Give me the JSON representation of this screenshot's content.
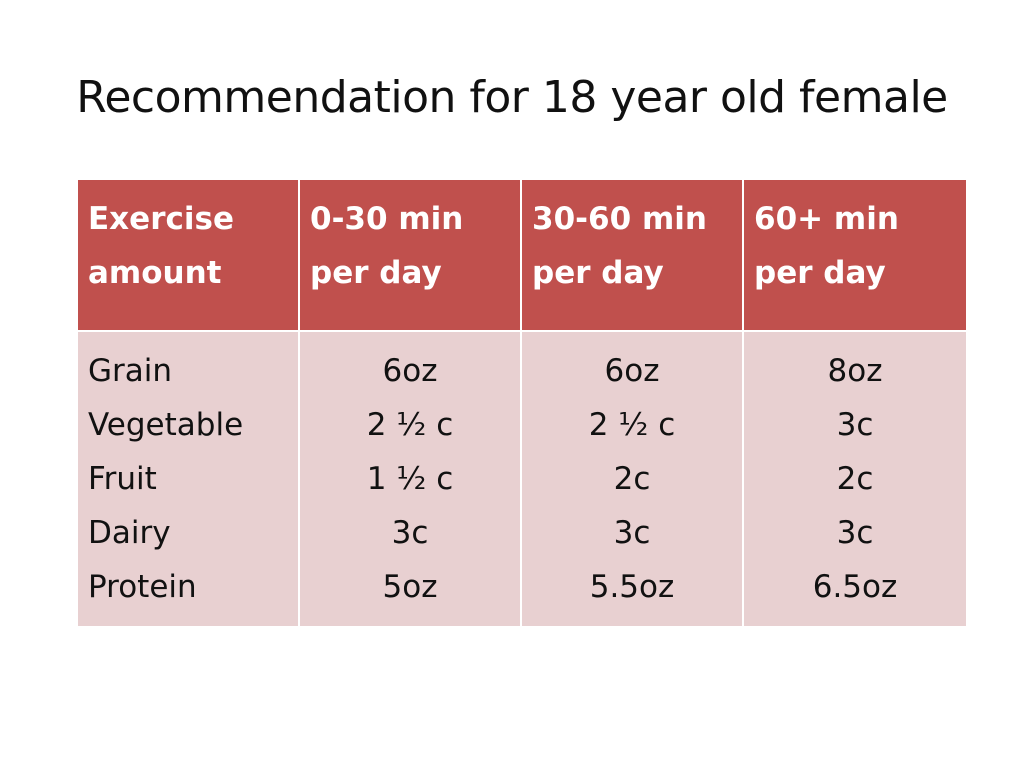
{
  "title": "Recommendation for 18 year old female",
  "table": {
    "headers": [
      [
        "Exercise",
        "amount"
      ],
      [
        "0-30 min",
        "per day"
      ],
      [
        "30-60 min",
        "per day"
      ],
      [
        "60+ min",
        "per day"
      ]
    ],
    "row_labels": [
      "Grain",
      "Vegetable",
      "Fruit",
      "Dairy",
      "Protein"
    ],
    "columns": [
      [
        "6oz",
        "2 ½ c",
        "1 ½ c",
        "3c",
        "5oz"
      ],
      [
        "6oz",
        "2 ½ c",
        "2c",
        "3c",
        "5.5oz"
      ],
      [
        "8oz",
        "3c",
        "2c",
        "3c",
        "6.5oz"
      ]
    ]
  },
  "colors": {
    "header_bg": "#c0504d",
    "body_bg": "#e8d0d1"
  }
}
